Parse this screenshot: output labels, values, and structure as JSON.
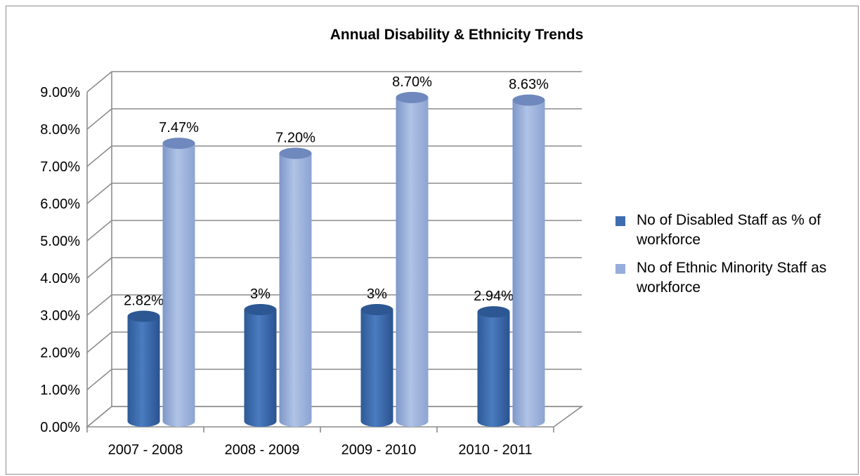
{
  "chart_data": {
    "type": "bar",
    "title": "Annual Disability & Ethnicity Trends",
    "categories": [
      "2007 - 2008",
      "2008 - 2009",
      "2009 - 2010",
      "2010 - 2011"
    ],
    "series": [
      {
        "name": "No of Disabled Staff as % of workforce",
        "values": [
          2.82,
          3.0,
          3.0,
          2.94
        ],
        "labels": [
          "2.82%",
          "3%",
          "3%",
          "2.94%"
        ],
        "color": "#3f6eb0"
      },
      {
        "name": "No of Ethnic Minority Staff as workforce",
        "values": [
          7.47,
          7.2,
          8.7,
          8.63
        ],
        "labels": [
          "7.47%",
          "7.20%",
          "8.70%",
          "8.63%"
        ],
        "color": "#97aedb"
      }
    ],
    "y_ticks": [
      "0.00%",
      "1.00%",
      "2.00%",
      "3.00%",
      "4.00%",
      "5.00%",
      "6.00%",
      "7.00%",
      "8.00%",
      "9.00%"
    ],
    "ylim": [
      0,
      9
    ],
    "xlabel": "",
    "ylabel": "",
    "grid": true,
    "legend_position": "right",
    "bar_shape": "cylinder-3d"
  }
}
